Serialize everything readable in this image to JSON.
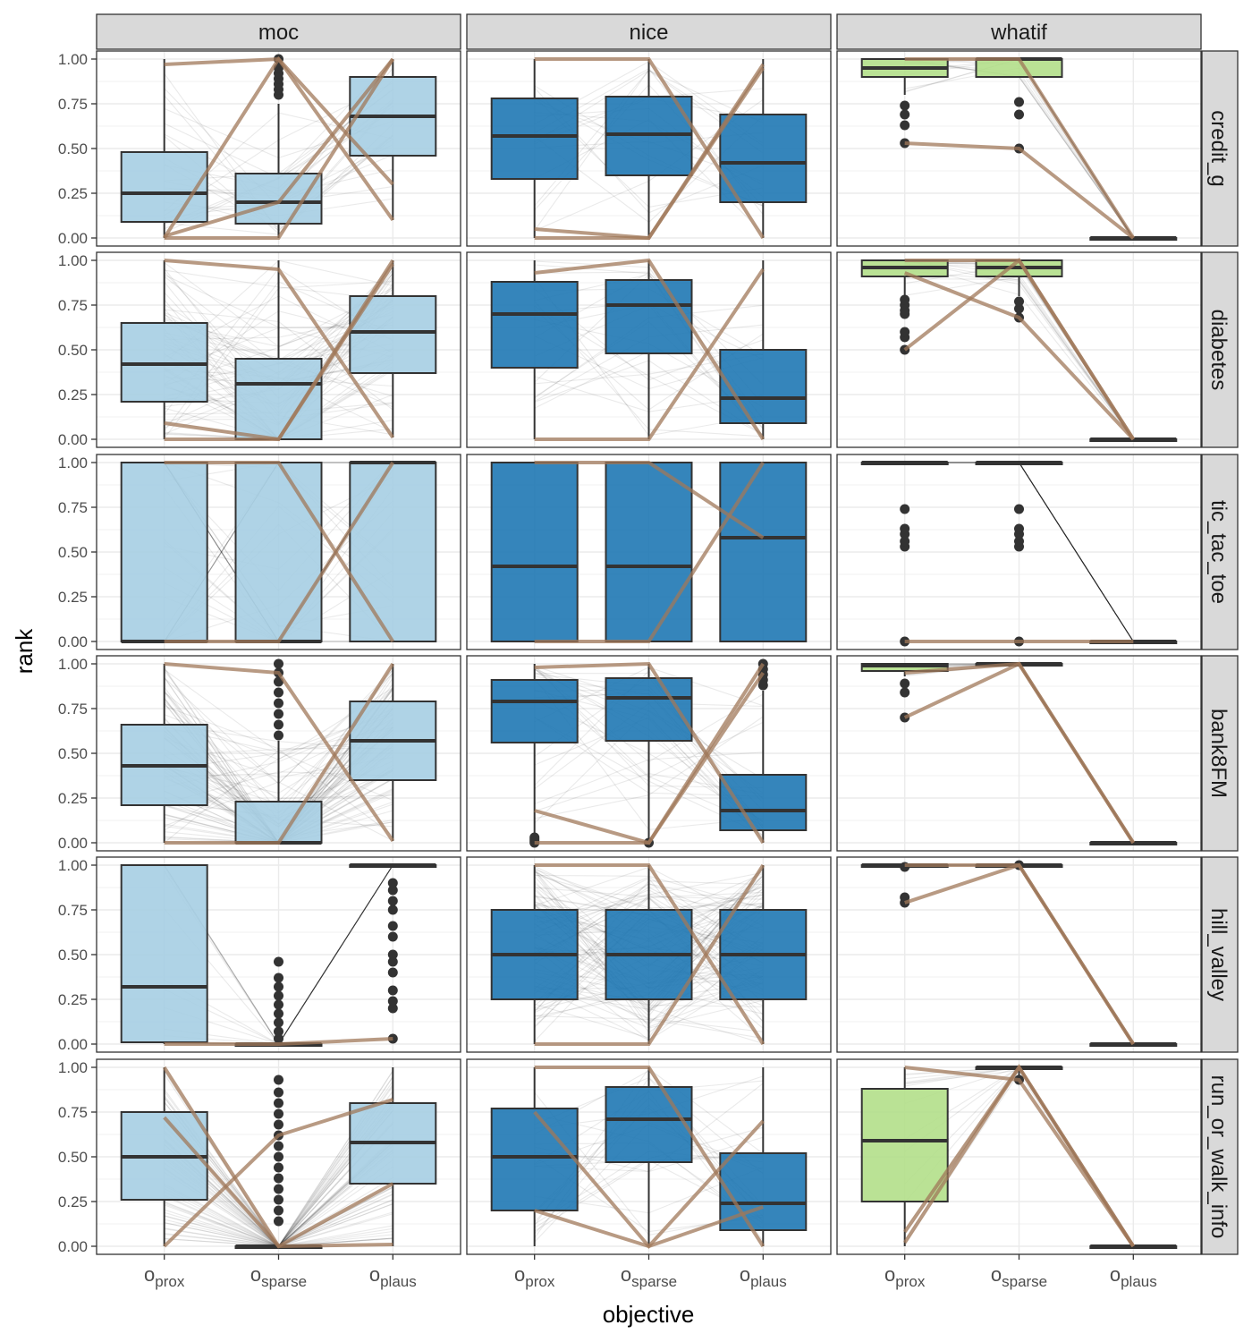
{
  "chart_data": {
    "type": "box",
    "xlabel": "objective",
    "ylabel": "rank",
    "ylim": [
      0,
      1
    ],
    "y_ticks": [
      "0.00",
      "0.25",
      "0.50",
      "0.75",
      "1.00"
    ],
    "y_tick_values": [
      0,
      0.25,
      0.5,
      0.75,
      1
    ],
    "x_categories": [
      {
        "base": "o",
        "sub": "prox"
      },
      {
        "base": "o",
        "sub": "sparse"
      },
      {
        "base": "o",
        "sub": "plaus"
      }
    ],
    "facet_cols": [
      "moc",
      "nice",
      "whatif"
    ],
    "facet_rows": [
      "credit_g",
      "diabetes",
      "tic_tac_toe",
      "bank8FM",
      "hill_valley",
      "run_or_walk_info"
    ],
    "colors": {
      "moc": "#a6cee3",
      "nice": "#1f78b4",
      "whatif": "#b2df8a",
      "highlight": "#a0785a",
      "background_lines": "#1a1a1a"
    },
    "panels": [
      {
        "row": "credit_g",
        "col": "moc",
        "boxes": [
          {
            "q1": 0.09,
            "median": 0.25,
            "q3": 0.48,
            "wlo": 0.0,
            "whi": 1.0,
            "out": []
          },
          {
            "q1": 0.08,
            "median": 0.2,
            "q3": 0.36,
            "wlo": 0.0,
            "whi": 0.75,
            "out": [
              0.8,
              0.83,
              0.86,
              0.89,
              0.92,
              0.95,
              1.0
            ]
          },
          {
            "q1": 0.46,
            "median": 0.68,
            "q3": 0.9,
            "wlo": 0.1,
            "whi": 1.0,
            "out": []
          }
        ],
        "density": 0.15,
        "hl": [
          [
            0.97,
            1.0,
            0.1
          ],
          [
            0.0,
            0.0,
            1.0
          ],
          [
            0.01,
            0.2,
            1.0
          ],
          [
            0.0,
            1.0,
            0.3
          ]
        ]
      },
      {
        "row": "credit_g",
        "col": "nice",
        "boxes": [
          {
            "q1": 0.33,
            "median": 0.57,
            "q3": 0.78,
            "wlo": 0.0,
            "whi": 1.0,
            "out": []
          },
          {
            "q1": 0.35,
            "median": 0.58,
            "q3": 0.79,
            "wlo": 0.0,
            "whi": 1.0,
            "out": []
          },
          {
            "q1": 0.2,
            "median": 0.42,
            "q3": 0.69,
            "wlo": 0.0,
            "whi": 1.0,
            "out": []
          }
        ],
        "density": 0.12,
        "hl": [
          [
            1.0,
            1.0,
            0.0
          ],
          [
            0.05,
            0.0,
            0.97
          ],
          [
            0.0,
            0.0,
            0.95
          ]
        ]
      },
      {
        "row": "credit_g",
        "col": "whatif",
        "boxes": [
          {
            "q1": 0.9,
            "median": 0.95,
            "q3": 1.0,
            "wlo": 0.8,
            "whi": 1.0,
            "out": [
              0.53,
              0.63,
              0.69,
              0.74
            ]
          },
          {
            "q1": 0.9,
            "median": 1.0,
            "q3": 1.0,
            "wlo": 0.9,
            "whi": 1.0,
            "out": [
              0.5,
              0.69,
              0.76
            ]
          },
          {
            "q1": 0.0,
            "median": 0.0,
            "q3": 0.0,
            "wlo": 0.0,
            "whi": 0.0,
            "out": []
          }
        ],
        "density": 0.1,
        "hl": [
          [
            0.53,
            0.5,
            0.0
          ],
          [
            1.0,
            1.0,
            0.0
          ]
        ]
      },
      {
        "row": "diabetes",
        "col": "moc",
        "boxes": [
          {
            "q1": 0.21,
            "median": 0.42,
            "q3": 0.65,
            "wlo": 0.0,
            "whi": 1.0,
            "out": []
          },
          {
            "q1": 0.0,
            "median": 0.31,
            "q3": 0.45,
            "wlo": 0.0,
            "whi": 1.0,
            "out": []
          },
          {
            "q1": 0.37,
            "median": 0.6,
            "q3": 0.8,
            "wlo": 0.01,
            "whi": 1.0,
            "out": []
          }
        ],
        "density": 0.4,
        "hl": [
          [
            1.0,
            0.95,
            0.01
          ],
          [
            0.09,
            0.0,
            1.0
          ],
          [
            0.0,
            0.0,
            0.98
          ]
        ]
      },
      {
        "row": "diabetes",
        "col": "nice",
        "boxes": [
          {
            "q1": 0.4,
            "median": 0.7,
            "q3": 0.88,
            "wlo": 0.0,
            "whi": 1.0,
            "out": []
          },
          {
            "q1": 0.48,
            "median": 0.75,
            "q3": 0.89,
            "wlo": 0.0,
            "whi": 1.0,
            "out": []
          },
          {
            "q1": 0.09,
            "median": 0.23,
            "q3": 0.5,
            "wlo": 0.0,
            "whi": 1.0,
            "out": []
          }
        ],
        "density": 0.15,
        "hl": [
          [
            0.93,
            1.0,
            0.0
          ],
          [
            0.0,
            0.0,
            0.95
          ]
        ]
      },
      {
        "row": "diabetes",
        "col": "whatif",
        "boxes": [
          {
            "q1": 0.91,
            "median": 0.96,
            "q3": 1.0,
            "wlo": 0.8,
            "whi": 1.0,
            "out": [
              0.5,
              0.57,
              0.6,
              0.7,
              0.72,
              0.75,
              0.78
            ]
          },
          {
            "q1": 0.91,
            "median": 0.96,
            "q3": 1.0,
            "wlo": 0.8,
            "whi": 1.0,
            "out": [
              0.68,
              0.73,
              0.77
            ]
          },
          {
            "q1": 0.0,
            "median": 0.0,
            "q3": 0.0,
            "wlo": 0.0,
            "whi": 0.0,
            "out": []
          }
        ],
        "density": 0.1,
        "hl": [
          [
            0.5,
            1.0,
            0.0
          ],
          [
            0.93,
            0.68,
            0.0
          ],
          [
            1.0,
            1.0,
            0.0
          ]
        ]
      },
      {
        "row": "tic_tac_toe",
        "col": "moc",
        "boxes": [
          {
            "q1": 0.0,
            "median": 0.0,
            "q3": 1.0,
            "wlo": 0.0,
            "whi": 1.0,
            "out": []
          },
          {
            "q1": 0.0,
            "median": 0.0,
            "q3": 1.0,
            "wlo": 0.0,
            "whi": 1.0,
            "out": []
          },
          {
            "q1": 0.0,
            "median": 1.0,
            "q3": 1.0,
            "wlo": 0.0,
            "whi": 1.0,
            "out": []
          }
        ],
        "density": 0.25,
        "hl": [
          [
            1.0,
            1.0,
            0.0
          ],
          [
            0.0,
            0.0,
            1.0
          ]
        ]
      },
      {
        "row": "tic_tac_toe",
        "col": "nice",
        "boxes": [
          {
            "q1": 0.0,
            "median": 0.42,
            "q3": 1.0,
            "wlo": 0.0,
            "whi": 1.0,
            "out": []
          },
          {
            "q1": 0.0,
            "median": 0.42,
            "q3": 1.0,
            "wlo": 0.0,
            "whi": 1.0,
            "out": []
          },
          {
            "q1": 0.0,
            "median": 0.58,
            "q3": 1.0,
            "wlo": 0.0,
            "whi": 1.0,
            "out": []
          }
        ],
        "density": 0.0,
        "hl": [
          [
            1.0,
            1.0,
            0.58
          ],
          [
            0.0,
            0.0,
            1.0
          ]
        ]
      },
      {
        "row": "tic_tac_toe",
        "col": "whatif",
        "boxes": [
          {
            "q1": 1.0,
            "median": 1.0,
            "q3": 1.0,
            "wlo": 1.0,
            "whi": 1.0,
            "out": [
              0.0,
              0.53,
              0.56,
              0.6,
              0.63,
              0.74
            ]
          },
          {
            "q1": 1.0,
            "median": 1.0,
            "q3": 1.0,
            "wlo": 1.0,
            "whi": 1.0,
            "out": [
              0.0,
              0.53,
              0.56,
              0.6,
              0.63,
              0.74
            ]
          },
          {
            "q1": 0.0,
            "median": 0.0,
            "q3": 0.0,
            "wlo": 0.0,
            "whi": 0.0,
            "out": []
          }
        ],
        "density": 0.15,
        "hl": [
          [
            0.0,
            0.0,
            0.0
          ]
        ]
      },
      {
        "row": "bank8FM",
        "col": "moc",
        "boxes": [
          {
            "q1": 0.21,
            "median": 0.43,
            "q3": 0.66,
            "wlo": 0.0,
            "whi": 1.0,
            "out": []
          },
          {
            "q1": 0.0,
            "median": 0.0,
            "q3": 0.23,
            "wlo": 0.0,
            "whi": 0.57,
            "out": [
              0.6,
              0.66,
              0.72,
              0.78,
              0.84,
              0.9,
              0.95,
              1.0
            ]
          },
          {
            "q1": 0.35,
            "median": 0.57,
            "q3": 0.79,
            "wlo": 0.01,
            "whi": 1.0,
            "out": []
          }
        ],
        "density": 0.5,
        "hl": [
          [
            1.0,
            0.95,
            0.01
          ],
          [
            0.0,
            0.0,
            1.0
          ]
        ]
      },
      {
        "row": "bank8FM",
        "col": "nice",
        "boxes": [
          {
            "q1": 0.56,
            "median": 0.79,
            "q3": 0.91,
            "wlo": 0.04,
            "whi": 1.0,
            "out": [
              0.0,
              0.01,
              0.02,
              0.03
            ]
          },
          {
            "q1": 0.57,
            "median": 0.81,
            "q3": 0.92,
            "wlo": 0.01,
            "whi": 1.0,
            "out": [
              0.0
            ]
          },
          {
            "q1": 0.07,
            "median": 0.18,
            "q3": 0.38,
            "wlo": 0.0,
            "whi": 0.85,
            "out": [
              0.88,
              0.91,
              0.94,
              0.97,
              1.0
            ]
          }
        ],
        "density": 0.18,
        "hl": [
          [
            0.98,
            1.0,
            0.0
          ],
          [
            0.18,
            0.0,
            1.0
          ],
          [
            0.0,
            0.0,
            0.95
          ]
        ]
      },
      {
        "row": "bank8FM",
        "col": "whatif",
        "boxes": [
          {
            "q1": 0.96,
            "median": 0.99,
            "q3": 1.0,
            "wlo": 0.93,
            "whi": 1.0,
            "out": [
              0.7,
              0.84,
              0.89
            ]
          },
          {
            "q1": 1.0,
            "median": 1.0,
            "q3": 1.0,
            "wlo": 1.0,
            "whi": 1.0,
            "out": []
          },
          {
            "q1": 0.0,
            "median": 0.0,
            "q3": 0.0,
            "wlo": 0.0,
            "whi": 0.0,
            "out": []
          }
        ],
        "density": 0.1,
        "hl": [
          [
            0.7,
            1.0,
            0.0
          ],
          [
            0.95,
            1.0,
            0.0
          ]
        ]
      },
      {
        "row": "hill_valley",
        "col": "moc",
        "boxes": [
          {
            "q1": 0.01,
            "median": 0.32,
            "q3": 1.0,
            "wlo": 0.0,
            "whi": 1.0,
            "out": []
          },
          {
            "q1": 0.0,
            "median": 0.0,
            "q3": 0.0,
            "wlo": 0.0,
            "whi": 0.0,
            "out": [
              0.03,
              0.07,
              0.12,
              0.17,
              0.22,
              0.27,
              0.32,
              0.37,
              0.46
            ]
          },
          {
            "q1": 1.0,
            "median": 1.0,
            "q3": 1.0,
            "wlo": 1.0,
            "whi": 1.0,
            "out": [
              0.03,
              0.2,
              0.24,
              0.3,
              0.4,
              0.46,
              0.5,
              0.6,
              0.66,
              0.75,
              0.8,
              0.86,
              0.9
            ]
          }
        ],
        "density": 0.12,
        "hl": [
          [
            0.0,
            0.0,
            0.03
          ]
        ]
      },
      {
        "row": "hill_valley",
        "col": "nice",
        "boxes": [
          {
            "q1": 0.25,
            "median": 0.5,
            "q3": 0.75,
            "wlo": 0.0,
            "whi": 1.0,
            "out": []
          },
          {
            "q1": 0.25,
            "median": 0.5,
            "q3": 0.75,
            "wlo": 0.0,
            "whi": 1.0,
            "out": []
          },
          {
            "q1": 0.25,
            "median": 0.5,
            "q3": 0.75,
            "wlo": 0.0,
            "whi": 1.0,
            "out": []
          }
        ],
        "density": 0.55,
        "hl": [
          [
            1.0,
            1.0,
            0.0
          ],
          [
            0.0,
            0.0,
            1.0
          ]
        ]
      },
      {
        "row": "hill_valley",
        "col": "whatif",
        "boxes": [
          {
            "q1": 1.0,
            "median": 1.0,
            "q3": 1.0,
            "wlo": 1.0,
            "whi": 1.0,
            "out": [
              0.79,
              0.82,
              0.99
            ]
          },
          {
            "q1": 1.0,
            "median": 1.0,
            "q3": 1.0,
            "wlo": 1.0,
            "whi": 1.0,
            "out": [
              1.0
            ]
          },
          {
            "q1": 0.0,
            "median": 0.0,
            "q3": 0.0,
            "wlo": 0.0,
            "whi": 0.0,
            "out": []
          }
        ],
        "density": 0.1,
        "hl": [
          [
            0.79,
            1.0,
            0.0
          ],
          [
            1.0,
            1.0,
            0.0
          ]
        ]
      },
      {
        "row": "run_or_walk_info",
        "col": "moc",
        "boxes": [
          {
            "q1": 0.26,
            "median": 0.5,
            "q3": 0.75,
            "wlo": 0.0,
            "whi": 1.0,
            "out": []
          },
          {
            "q1": 0.0,
            "median": 0.0,
            "q3": 0.0,
            "wlo": 0.0,
            "whi": 0.0,
            "out": [
              0.14,
              0.2,
              0.26,
              0.32,
              0.38,
              0.44,
              0.5,
              0.56,
              0.62,
              0.68,
              0.74,
              0.8,
              0.86,
              0.93
            ]
          },
          {
            "q1": 0.35,
            "median": 0.58,
            "q3": 0.8,
            "wlo": 0.0,
            "whi": 1.0,
            "out": []
          }
        ],
        "density": 0.35,
        "hl": [
          [
            1.0,
            0.0,
            0.01
          ],
          [
            0.72,
            0.0,
            0.35
          ],
          [
            0.0,
            0.62,
            0.82
          ]
        ]
      },
      {
        "row": "run_or_walk_info",
        "col": "nice",
        "boxes": [
          {
            "q1": 0.2,
            "median": 0.5,
            "q3": 0.77,
            "wlo": 0.0,
            "whi": 1.0,
            "out": []
          },
          {
            "q1": 0.47,
            "median": 0.71,
            "q3": 0.89,
            "wlo": 0.0,
            "whi": 1.0,
            "out": []
          },
          {
            "q1": 0.09,
            "median": 0.24,
            "q3": 0.52,
            "wlo": 0.0,
            "whi": 1.0,
            "out": []
          }
        ],
        "density": 0.15,
        "hl": [
          [
            1.0,
            1.0,
            0.0
          ],
          [
            0.75,
            0.0,
            0.7
          ],
          [
            0.2,
            0.0,
            0.22
          ]
        ]
      },
      {
        "row": "run_or_walk_info",
        "col": "whatif",
        "boxes": [
          {
            "q1": 0.25,
            "median": 0.59,
            "q3": 0.88,
            "wlo": 0.0,
            "whi": 1.0,
            "out": []
          },
          {
            "q1": 1.0,
            "median": 1.0,
            "q3": 1.0,
            "wlo": 0.94,
            "whi": 1.0,
            "out": [
              0.93
            ]
          },
          {
            "q1": 0.0,
            "median": 0.0,
            "q3": 0.0,
            "wlo": 0.0,
            "whi": 0.0,
            "out": []
          }
        ],
        "density": 0.1,
        "hl": [
          [
            1.0,
            0.93,
            0.0
          ],
          [
            0.02,
            1.0,
            0.0
          ],
          [
            0.08,
            1.0,
            0.0
          ]
        ]
      }
    ]
  }
}
